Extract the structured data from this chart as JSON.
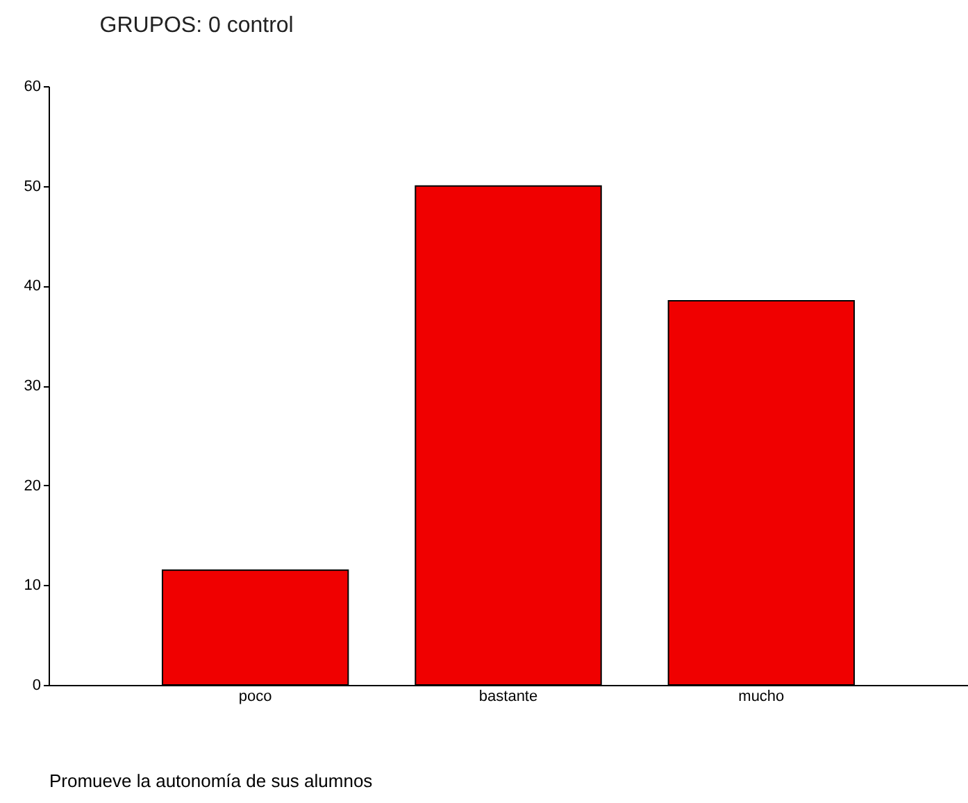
{
  "chart_data": {
    "type": "bar",
    "title": "GRUPOS:      0   control",
    "xlabel": "Promueve la autonomía de sus alumnos",
    "categories": [
      "poco",
      "bastante",
      "mucho"
    ],
    "values": [
      11.5,
      50,
      38.5
    ],
    "color": "#f00000",
    "ylim": [
      0,
      60
    ],
    "yticks": [
      0,
      10,
      20,
      30,
      40,
      50,
      60
    ],
    "grid": false
  }
}
